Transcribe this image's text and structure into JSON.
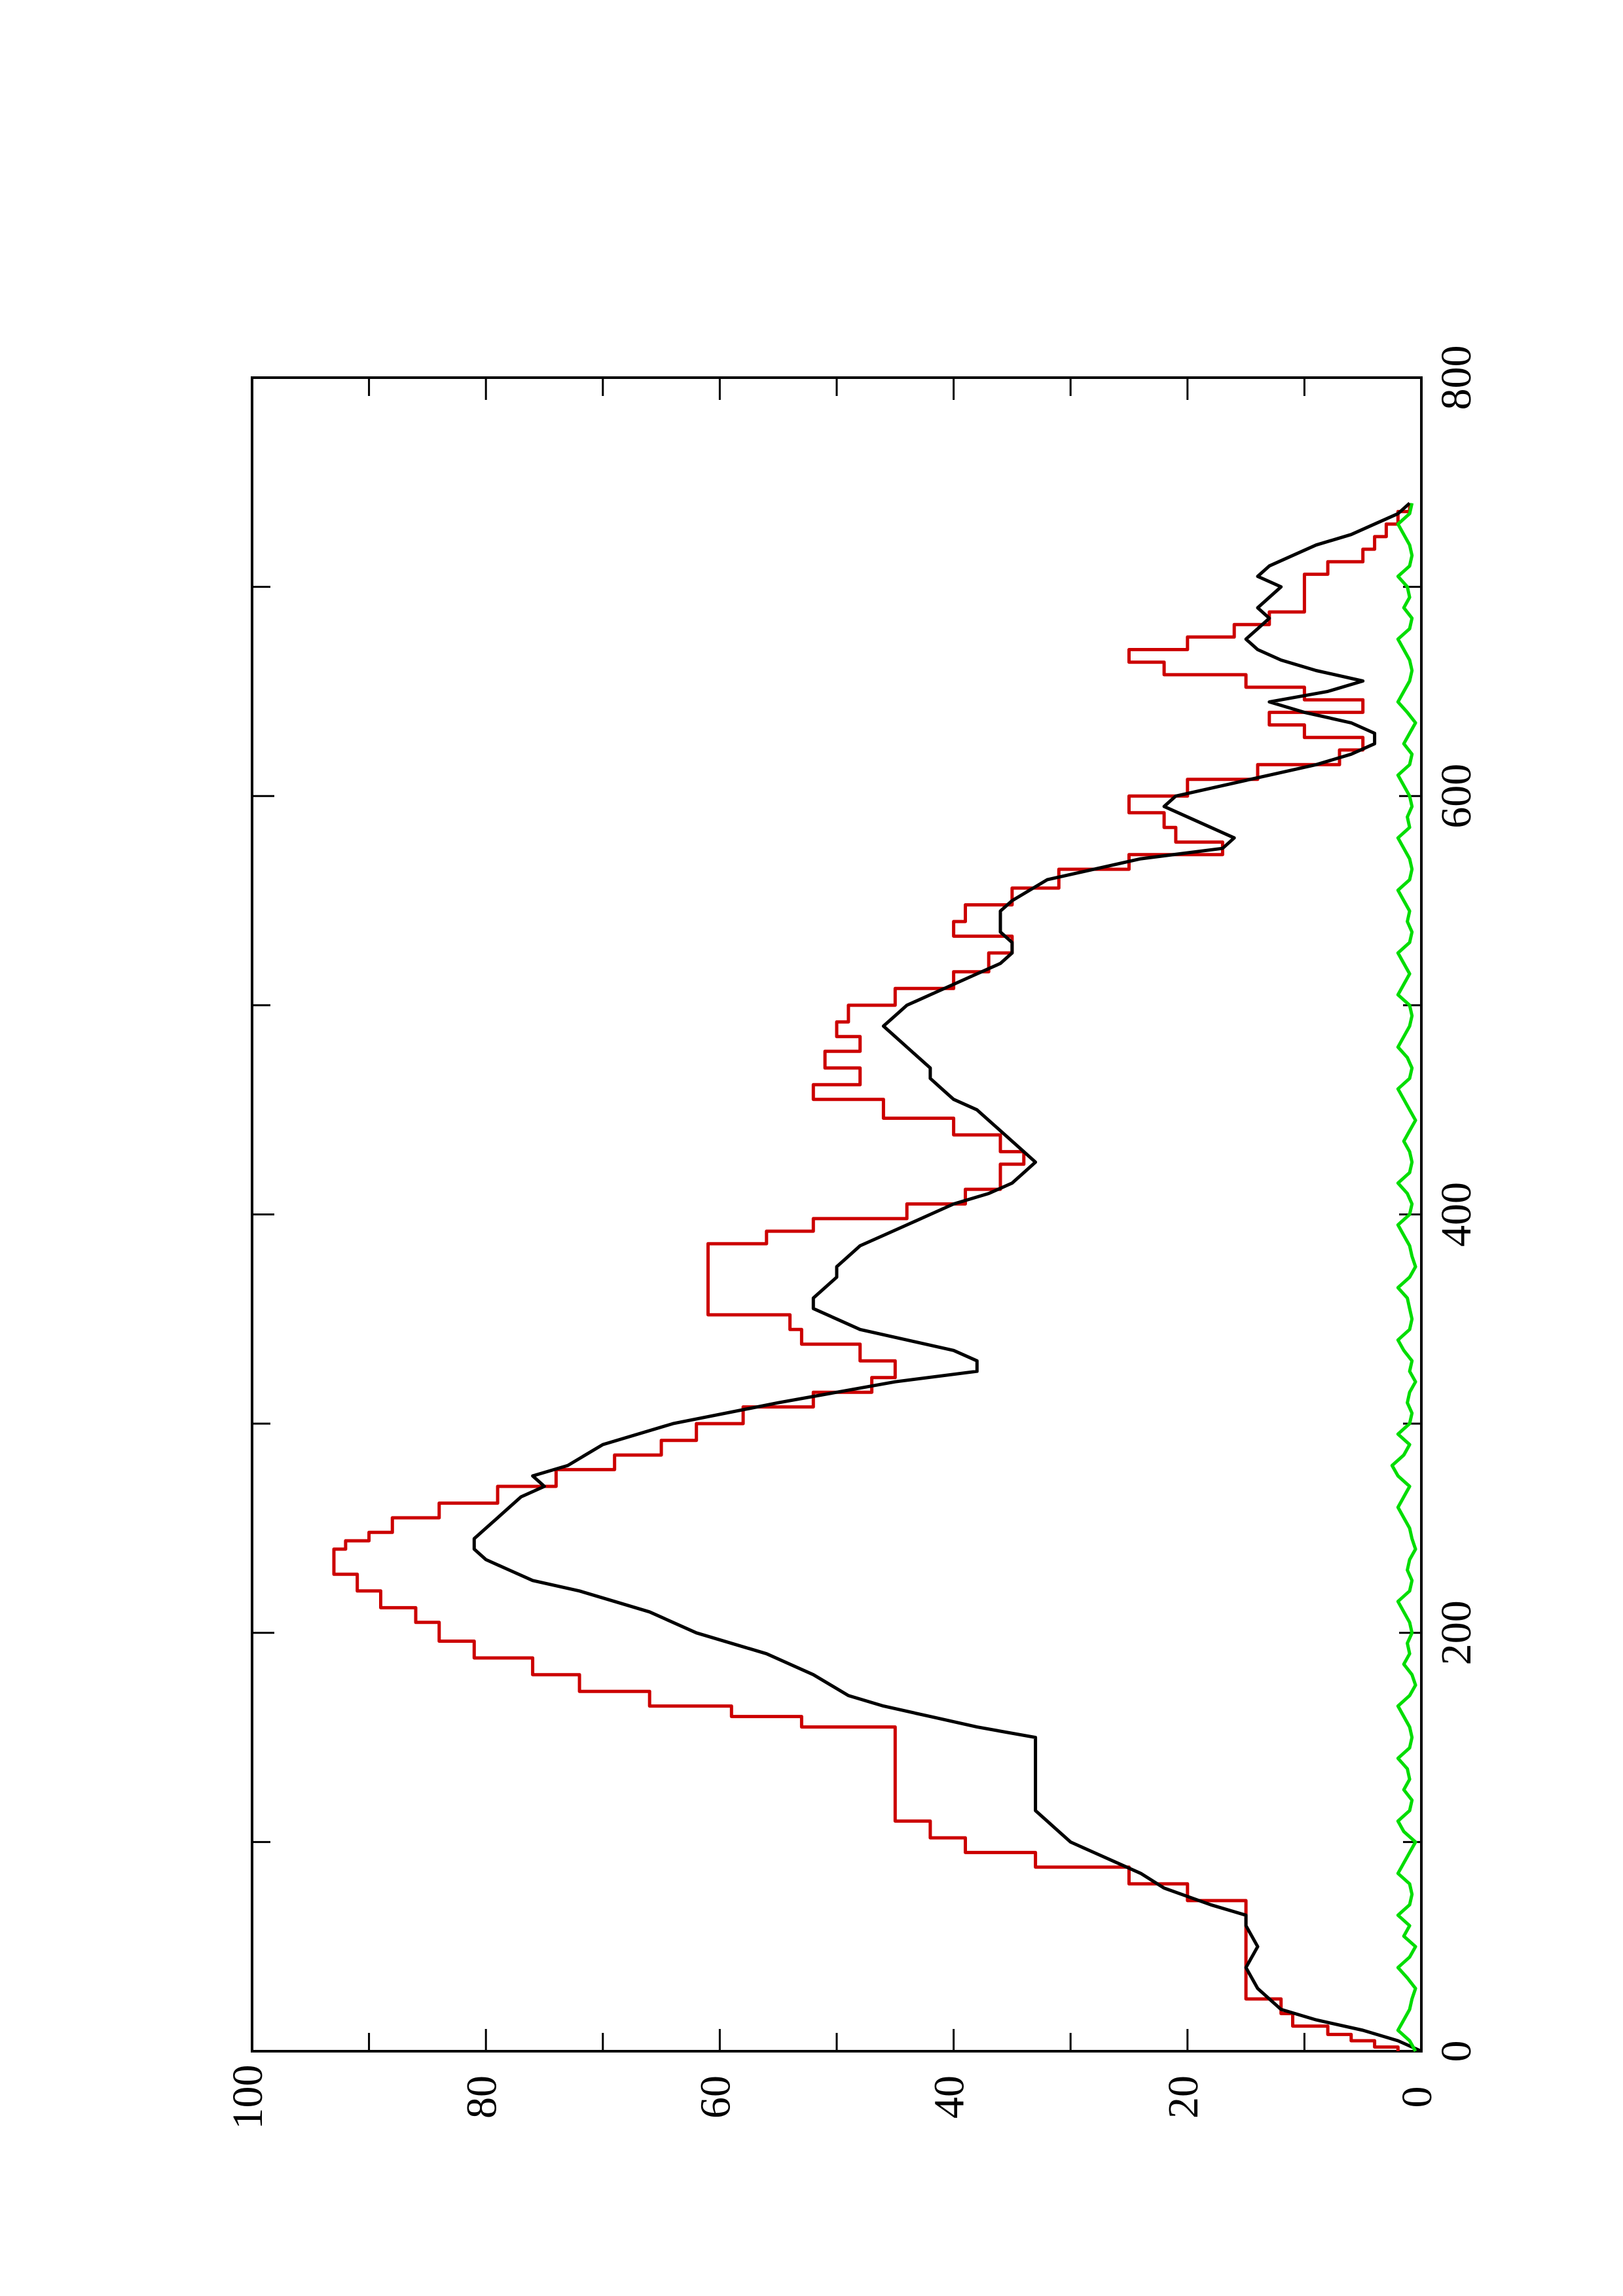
{
  "chart_data": {
    "type": "line",
    "title": "",
    "xlabel": "",
    "ylabel": "",
    "orientation": "rotated 90 degrees counter-clockwise",
    "xlim": [
      0,
      800
    ],
    "ylim": [
      0,
      100
    ],
    "x_ticks": [
      "0",
      "200",
      "400",
      "600",
      "800"
    ],
    "x_minor_ticks": [
      100,
      300,
      500,
      700
    ],
    "y_ticks": [
      "0",
      "20",
      "40",
      "60",
      "80",
      "100"
    ],
    "y_minor_ticks": [
      10,
      30,
      50,
      70,
      90
    ],
    "grid": false,
    "legend": "none",
    "series": [
      {
        "color": "#cc0000",
        "style": "step",
        "x": [
          0,
          2,
          5,
          8,
          12,
          18,
          25,
          35,
          45,
          55,
          65,
          72,
          80,
          88,
          95,
          102,
          110,
          118,
          125,
          135,
          145,
          150,
          155,
          160,
          165,
          172,
          180,
          188,
          196,
          205,
          212,
          220,
          228,
          235,
          240,
          244,
          248,
          255,
          262,
          270,
          278,
          285,
          292,
          300,
          308,
          315,
          322,
          330,
          338,
          345,
          352,
          360,
          368,
          375,
          380,
          386,
          392,
          398,
          405,
          412,
          418,
          424,
          430,
          438,
          446,
          455,
          462,
          470,
          478,
          485,
          492,
          500,
          508,
          516,
          525,
          533,
          540,
          548,
          556,
          565,
          572,
          578,
          585,
          592,
          600,
          608,
          615,
          622,
          628,
          634,
          640,
          646,
          652,
          658,
          664,
          670,
          676,
          682,
          688,
          694,
          700,
          706,
          712,
          718,
          724,
          730,
          736,
          740
        ],
        "y": [
          2,
          4,
          6,
          8,
          11,
          12,
          15,
          15,
          15,
          15,
          15,
          20,
          25,
          33,
          39,
          42,
          45,
          45,
          45,
          45,
          45,
          45,
          53,
          59,
          66,
          72,
          76,
          81,
          84,
          86,
          89,
          91,
          93,
          93,
          92,
          90,
          88,
          84,
          79,
          74,
          69,
          65,
          62,
          58,
          52,
          47,
          45,
          48,
          53,
          54,
          61,
          61,
          61,
          61,
          61,
          56,
          52,
          44,
          39,
          36,
          36,
          34,
          36,
          40,
          46,
          52,
          48,
          51,
          48,
          50,
          49,
          45,
          40,
          37,
          35,
          40,
          39,
          35,
          31,
          25,
          17,
          21,
          22,
          25,
          20,
          14,
          7,
          5,
          10,
          13,
          5,
          10,
          15,
          22,
          25,
          20,
          16,
          13,
          10,
          10,
          10,
          8,
          5,
          4,
          3,
          2,
          1,
          1
        ]
      },
      {
        "color": "#000000",
        "style": "line",
        "x": [
          0,
          5,
          10,
          15,
          20,
          25,
          30,
          40,
          50,
          60,
          65,
          70,
          78,
          85,
          90,
          95,
          100,
          105,
          110,
          115,
          120,
          130,
          140,
          150,
          155,
          160,
          165,
          170,
          180,
          190,
          200,
          210,
          215,
          220,
          225,
          230,
          235,
          240,
          245,
          250,
          255,
          260,
          265,
          270,
          275,
          280,
          290,
          300,
          310,
          320,
          325,
          330,
          335,
          340,
          345,
          350,
          355,
          360,
          365,
          370,
          375,
          380,
          385,
          390,
          395,
          400,
          405,
          410,
          415,
          420,
          425,
          430,
          435,
          440,
          445,
          450,
          455,
          460,
          465,
          470,
          475,
          480,
          485,
          490,
          495,
          500,
          505,
          510,
          515,
          520,
          525,
          530,
          535,
          540,
          545,
          550,
          560,
          570,
          575,
          580,
          585,
          590,
          595,
          600,
          605,
          610,
          615,
          620,
          625,
          630,
          635,
          640,
          645,
          650,
          655,
          660,
          665,
          670,
          675,
          680,
          685,
          690,
          695,
          700,
          705,
          710,
          715,
          720,
          725,
          730,
          735,
          740
        ],
        "y": [
          0,
          2,
          5,
          9,
          12,
          13,
          14,
          15,
          14,
          15,
          15,
          18,
          22,
          24,
          26,
          28,
          30,
          31,
          32,
          33,
          33,
          33,
          33,
          33,
          38,
          42,
          46,
          49,
          52,
          56,
          62,
          66,
          69,
          72,
          76,
          78,
          80,
          81,
          81,
          80,
          79,
          78,
          77,
          75,
          76,
          73,
          70,
          64,
          55,
          45,
          38,
          38,
          40,
          44,
          48,
          50,
          52,
          52,
          51,
          50,
          50,
          49,
          48,
          46,
          44,
          42,
          40,
          37,
          35,
          34,
          33,
          34,
          35,
          36,
          37,
          38,
          40,
          41,
          42,
          42,
          43,
          44,
          45,
          46,
          45,
          44,
          42,
          40,
          38,
          36,
          35,
          35,
          36,
          36,
          36,
          35,
          32,
          24,
          17,
          16,
          18,
          20,
          22,
          21,
          17,
          13,
          9,
          6,
          4,
          4,
          6,
          10,
          13,
          8,
          5,
          9,
          12,
          14,
          15,
          14,
          13,
          14,
          13,
          12,
          14,
          13,
          11,
          9,
          6,
          4,
          2,
          1
        ]
      },
      {
        "color": "#00dd00",
        "style": "line",
        "x": [
          0,
          5,
          10,
          15,
          20,
          25,
          30,
          35,
          40,
          45,
          50,
          55,
          60,
          65,
          70,
          75,
          80,
          85,
          90,
          95,
          100,
          105,
          110,
          115,
          120,
          125,
          130,
          135,
          140,
          145,
          150,
          155,
          160,
          165,
          170,
          175,
          180,
          185,
          190,
          195,
          200,
          205,
          210,
          215,
          220,
          225,
          230,
          235,
          240,
          245,
          250,
          255,
          260,
          265,
          270,
          275,
          280,
          285,
          290,
          295,
          300,
          305,
          310,
          315,
          320,
          325,
          330,
          335,
          340,
          345,
          350,
          355,
          360,
          365,
          370,
          375,
          380,
          385,
          390,
          395,
          400,
          405,
          410,
          415,
          420,
          425,
          430,
          435,
          440,
          445,
          450,
          455,
          460,
          465,
          470,
          475,
          480,
          485,
          490,
          495,
          500,
          505,
          510,
          515,
          520,
          525,
          530,
          535,
          540,
          545,
          550,
          555,
          560,
          565,
          570,
          575,
          580,
          585,
          590,
          595,
          600,
          605,
          610,
          615,
          620,
          625,
          630,
          635,
          640,
          645,
          650,
          655,
          660,
          665,
          670,
          675,
          680,
          685,
          690,
          695,
          700,
          705,
          710,
          715,
          720,
          725,
          730,
          735,
          740
        ],
        "y": [
          0.5,
          1.0,
          2.0,
          1.5,
          1.0,
          0.8,
          0.5,
          1.2,
          2.0,
          1.0,
          0.5,
          1.5,
          1.0,
          2.0,
          1.0,
          0.8,
          1.0,
          2.0,
          1.5,
          1.0,
          0.5,
          1.5,
          2.0,
          1.0,
          0.8,
          1.5,
          1.0,
          1.2,
          2.0,
          1.0,
          0.8,
          1.0,
          1.5,
          2.0,
          1.0,
          0.5,
          0.8,
          1.5,
          1.0,
          1.2,
          0.8,
          1.0,
          1.5,
          2.0,
          1.0,
          0.8,
          1.2,
          1.0,
          0.5,
          0.8,
          1.0,
          1.5,
          2.0,
          1.5,
          1.0,
          2.0,
          2.5,
          1.5,
          1.0,
          2.0,
          1.0,
          0.8,
          1.2,
          1.0,
          0.5,
          1.0,
          0.8,
          1.5,
          2.0,
          1.0,
          0.8,
          1.0,
          1.2,
          2.0,
          1.0,
          0.5,
          0.8,
          1.0,
          1.5,
          2.0,
          1.0,
          0.8,
          1.2,
          2.0,
          1.0,
          0.8,
          1.0,
          1.5,
          1.0,
          0.5,
          1.0,
          1.5,
          2.0,
          1.0,
          0.8,
          1.2,
          2.0,
          1.5,
          1.0,
          0.8,
          1.0,
          2.0,
          1.5,
          1.0,
          1.5,
          2.0,
          1.0,
          0.8,
          1.2,
          1.0,
          1.5,
          2.0,
          1.0,
          0.8,
          1.0,
          1.5,
          2.0,
          1.0,
          1.2,
          0.8,
          1.0,
          1.5,
          2.0,
          1.0,
          0.8,
          1.5,
          1.0,
          0.5,
          1.2,
          2.0,
          1.5,
          1.0,
          0.8,
          1.0,
          1.5,
          2.0,
          1.0,
          0.8,
          1.5,
          1.0,
          1.2,
          2.0,
          1.0,
          0.8,
          1.0,
          1.5,
          2.0,
          1.0,
          0.8
        ]
      }
    ]
  }
}
